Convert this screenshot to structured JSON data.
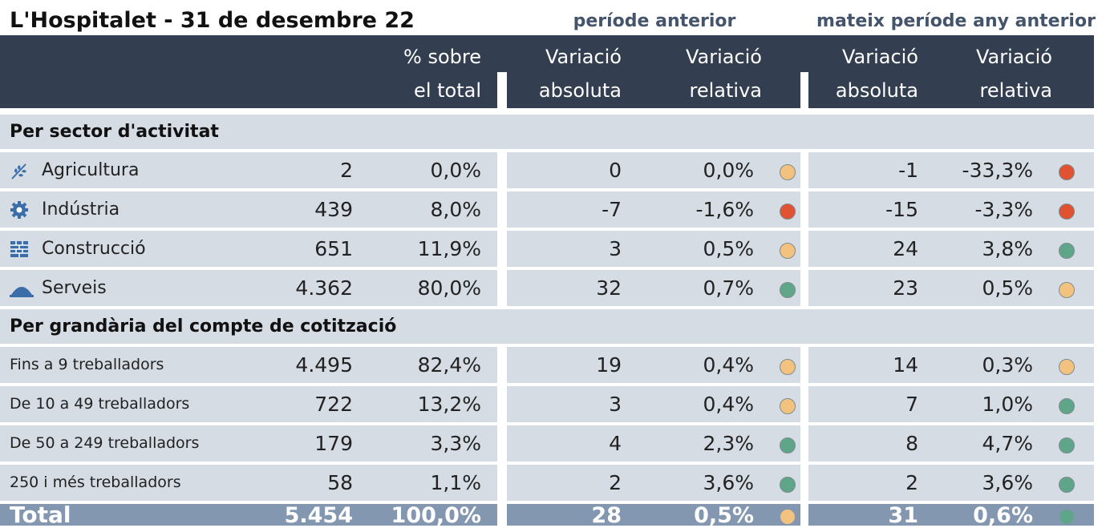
{
  "title": "L'Hospitalet - 31 de desembre 22",
  "group_headers": [
    "període anterior",
    "mateix període any anterior"
  ],
  "columns": [
    [
      "% sobre",
      "el total"
    ],
    [
      "Variació",
      "absoluta"
    ],
    [
      "Variació",
      "relativa"
    ],
    [
      "Variació",
      "absoluta"
    ],
    [
      "Variació",
      "relativa"
    ]
  ],
  "sections": [
    {
      "title": "Per sector d'activitat",
      "rows": [
        {
          "label": "Agricultura",
          "cells": [
            "2",
            "0,0%",
            "0",
            "0,0%",
            "-1",
            "-33,3%"
          ],
          "dots": [
            "#f3c27e",
            "#e05232"
          ]
        },
        {
          "label": "Indústria",
          "cells": [
            "439",
            "8,0%",
            "-7",
            "-1,6%",
            "-15",
            "-3,3%"
          ],
          "dots": [
            "#e05232",
            "#e05232"
          ]
        },
        {
          "label": "Construcció",
          "cells": [
            "651",
            "11,9%",
            "3",
            "0,5%",
            "24",
            "3,8%"
          ],
          "dots": [
            "#f3c27e",
            "#5fa58a"
          ]
        },
        {
          "label": "Serveis",
          "cells": [
            "4.362",
            "80,0%",
            "32",
            "0,7%",
            "23",
            "0,5%"
          ],
          "dots": [
            "#5fa58a",
            "#f3c27e"
          ]
        }
      ]
    },
    {
      "title": "Per grandària del compte de cotització",
      "rows": [
        {
          "label": "Fins a 9 treballadors",
          "cells": [
            "4.495",
            "82,4%",
            "19",
            "0,4%",
            "14",
            "0,3%"
          ],
          "dots": [
            "#f3c27e",
            "#f3c27e"
          ]
        },
        {
          "label": "De 10 a 49 treballadors",
          "cells": [
            "722",
            "13,2%",
            "3",
            "0,4%",
            "7",
            "1,0%"
          ],
          "dots": [
            "#f3c27e",
            "#5fa58a"
          ]
        },
        {
          "label": "De 50 a 249 treballadors",
          "cells": [
            "179",
            "3,3%",
            "4",
            "2,3%",
            "8",
            "4,7%"
          ],
          "dots": [
            "#5fa58a",
            "#5fa58a"
          ]
        },
        {
          "label": "250 i més treballadors",
          "cells": [
            "58",
            "1,1%",
            "2",
            "3,6%",
            "2",
            "3,6%"
          ],
          "dots": [
            "#5fa58a",
            "#5fa58a"
          ]
        }
      ]
    }
  ],
  "total": {
    "label": "Total",
    "cells": [
      "5.454",
      "100,0%",
      "28",
      "0,5%",
      "31",
      "0,6%"
    ],
    "dots": [
      "#f3c27e",
      "#5fa58a"
    ]
  }
}
